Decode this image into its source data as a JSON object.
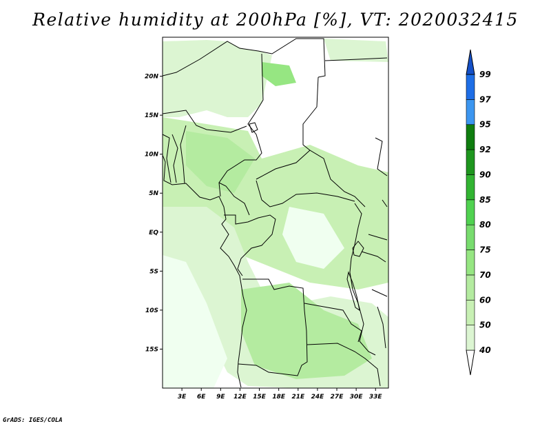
{
  "title": "Relative humidity at 200hPa [%], VT: 2020032415",
  "credit": "GrADS: IGES/COLA",
  "map": {
    "lon_range": [
      0,
      35
    ],
    "lat_range": [
      -20,
      25
    ],
    "lat_ticks": [
      {
        "value": 20,
        "label": "20N"
      },
      {
        "value": 15,
        "label": "15N"
      },
      {
        "value": 10,
        "label": "10N"
      },
      {
        "value": 5,
        "label": "5N"
      },
      {
        "value": 0,
        "label": "EQ"
      },
      {
        "value": -5,
        "label": "5S"
      },
      {
        "value": -10,
        "label": "10S"
      },
      {
        "value": -15,
        "label": "15S"
      }
    ],
    "lon_ticks": [
      {
        "value": 3,
        "label": "3E"
      },
      {
        "value": 6,
        "label": "6E"
      },
      {
        "value": 9,
        "label": "9E"
      },
      {
        "value": 12,
        "label": "12E"
      },
      {
        "value": 15,
        "label": "15E"
      },
      {
        "value": 18,
        "label": "18E"
      },
      {
        "value": 21,
        "label": "21E"
      },
      {
        "value": 24,
        "label": "24E"
      },
      {
        "value": 27,
        "label": "27E"
      },
      {
        "value": 30,
        "label": "30E"
      },
      {
        "value": 33,
        "label": "33E"
      }
    ]
  },
  "colorbar": {
    "labels": [
      "40",
      "50",
      "60",
      "70",
      "75",
      "80",
      "85",
      "90",
      "92",
      "95",
      "97",
      "99"
    ],
    "colors": [
      "#f0fff0",
      "#dcf5d2",
      "#c8f0b4",
      "#b4eba0",
      "#96e682",
      "#78dc6e",
      "#50d250",
      "#32b432",
      "#1e961e",
      "#0f7d0f",
      "#3c96f0",
      "#1e6ee6",
      "#1450c8"
    ]
  },
  "colors": {
    "land_border": "#000000",
    "coast": "#000000"
  }
}
